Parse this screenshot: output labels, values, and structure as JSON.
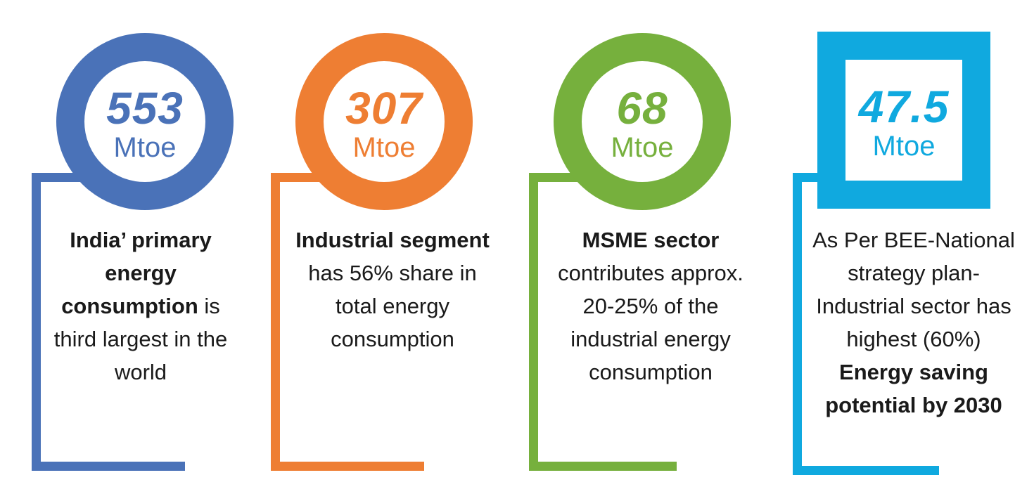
{
  "cards": [
    {
      "value": "553",
      "unit": "Mtoe",
      "color": "#4a72b8",
      "lead_bold": "India’ primary energy consumption",
      "rest": " is third largest in the world"
    },
    {
      "value": "307",
      "unit": "Mtoe",
      "color": "#ee7e33",
      "lead_bold": "Industrial segment",
      "rest": " has 56% share in total energy consumption"
    },
    {
      "value": "68",
      "unit": "Mtoe",
      "color": "#76b03d",
      "lead_bold": "MSME sector",
      "rest": " contributes approx. 20-25% of the industrial energy consumption"
    },
    {
      "value": "47.5",
      "unit": "Mtoe",
      "color": "#10a9df",
      "lead_plain": "As Per BEE-National strategy plan- Industrial sector has highest (60%) ",
      "tail_bold": "Energy saving potential by 2030"
    }
  ]
}
